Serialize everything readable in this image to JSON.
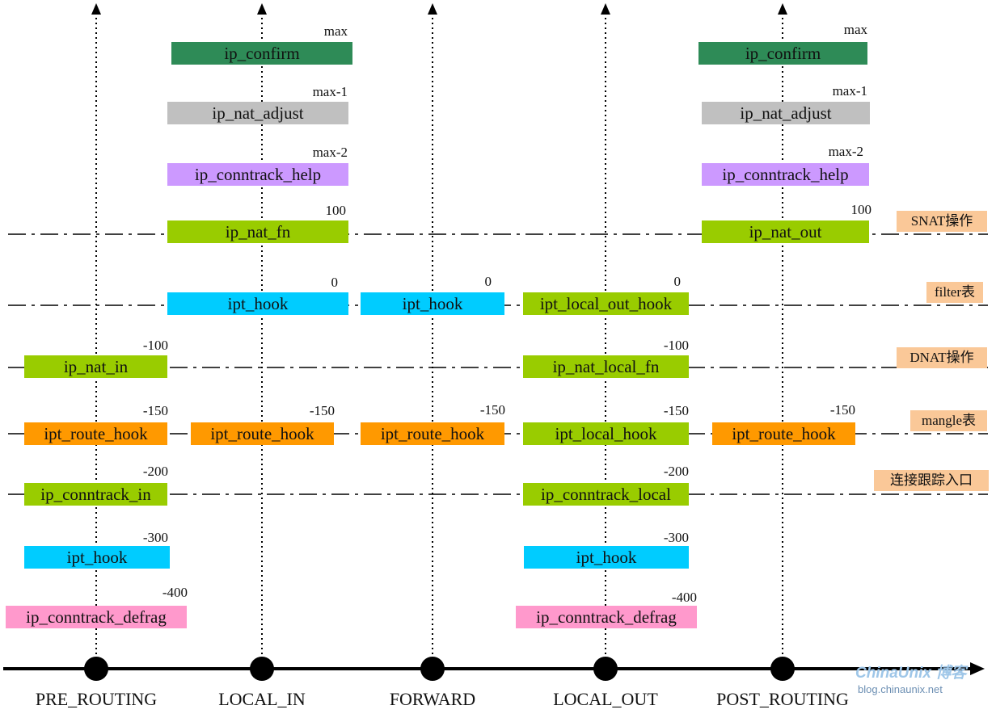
{
  "colors": {
    "confirm": "#2e8b57",
    "adjust": "#c0c0c0",
    "help": "#cc99ff",
    "nat": "#99cc00",
    "filter": "#00ccff",
    "mangle": "#ff9900",
    "defrag": "#ff99cc",
    "tag": "#fac898"
  },
  "hooks": [
    {
      "name": "PRE_ROUTING"
    },
    {
      "name": "LOCAL_IN"
    },
    {
      "name": "FORWARD"
    },
    {
      "name": "LOCAL_OUT"
    },
    {
      "name": "POST_ROUTING"
    }
  ],
  "boxes": [
    {
      "label": "ip_confirm",
      "priority": "max",
      "color_key": "confirm"
    },
    {
      "label": "ip_confirm",
      "priority": "max",
      "color_key": "confirm"
    },
    {
      "label": "ip_nat_adjust",
      "priority": "max-1",
      "color_key": "adjust"
    },
    {
      "label": "ip_nat_adjust",
      "priority": "max-1",
      "color_key": "adjust"
    },
    {
      "label": "ip_conntrack_help",
      "priority": "max-2",
      "color_key": "help"
    },
    {
      "label": "ip_conntrack_help",
      "priority": "max-2",
      "color_key": "help"
    },
    {
      "label": "ip_nat_fn",
      "priority": "100",
      "color_key": "nat"
    },
    {
      "label": "ip_nat_out",
      "priority": "100",
      "color_key": "nat"
    },
    {
      "label": "ipt_hook",
      "priority": "0",
      "color_key": "filter"
    },
    {
      "label": "ipt_hook",
      "priority": "0",
      "color_key": "filter"
    },
    {
      "label": "ipt_local_out_hook",
      "priority": "0",
      "color_key": "nat"
    },
    {
      "label": "ip_nat_in",
      "priority": "-100",
      "color_key": "nat"
    },
    {
      "label": "ip_nat_local_fn",
      "priority": "-100",
      "color_key": "nat"
    },
    {
      "label": "ipt_route_hook",
      "priority": "-150",
      "color_key": "mangle"
    },
    {
      "label": "ipt_route_hook",
      "priority": "-150",
      "color_key": "mangle"
    },
    {
      "label": "ipt_route_hook",
      "priority": "-150",
      "color_key": "mangle"
    },
    {
      "label": "ipt_local_hook",
      "priority": "-150",
      "color_key": "nat"
    },
    {
      "label": "ipt_route_hook",
      "priority": "-150",
      "color_key": "mangle"
    },
    {
      "label": "ip_conntrack_in",
      "priority": "-200",
      "color_key": "nat"
    },
    {
      "label": "ip_conntrack_local",
      "priority": "-200",
      "color_key": "nat"
    },
    {
      "label": "ipt_hook",
      "priority": "-300",
      "color_key": "filter"
    },
    {
      "label": "ipt_hook",
      "priority": "-300",
      "color_key": "filter"
    },
    {
      "label": "ip_conntrack_defrag",
      "priority": "-400",
      "color_key": "defrag"
    },
    {
      "label": "ip_conntrack_defrag",
      "priority": "-400",
      "color_key": "defrag"
    }
  ],
  "tags": [
    {
      "text": "SNAT操作"
    },
    {
      "text": "filter表"
    },
    {
      "text": "DNAT操作"
    },
    {
      "text": "mangle表"
    },
    {
      "text": "连接跟踪入口"
    }
  ],
  "watermark": {
    "brand": "ChinaUnix 博客",
    "url": "blog.chinaunix.net"
  }
}
